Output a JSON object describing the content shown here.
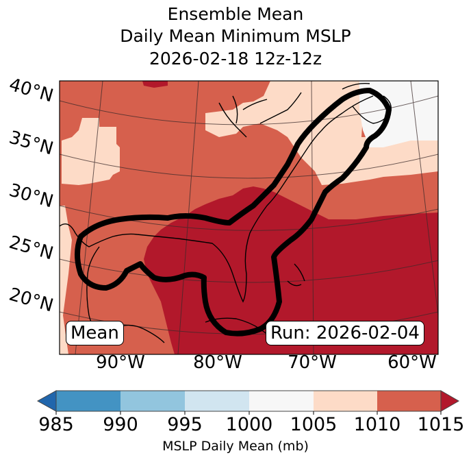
{
  "title": {
    "line1": "Ensemble Mean",
    "line2": "Daily Mean Minimum MSLP",
    "line3": "2026-02-18 12z-12z"
  },
  "map": {
    "lat_labels": [
      "40°N",
      "35°N",
      "30°N",
      "25°N",
      "20°N"
    ],
    "lon_labels": [
      "90°W",
      "80°W",
      "70°W",
      "60°W"
    ],
    "mean_box": "Mean",
    "run_box": "Run: 2026-02-04",
    "colors": {
      "c1005_1010": "#fddbc7",
      "c1010_1015": "#d6604d",
      "c_over_1015": "#b2182b",
      "c1000_1005": "#f7f7f7"
    }
  },
  "colorbar": {
    "label": "MSLP Daily Mean (mb)",
    "ticks": [
      "985",
      "990",
      "995",
      "1000",
      "1005",
      "1010",
      "1015"
    ],
    "colors": [
      "#4393c3",
      "#92c5de",
      "#d1e5f0",
      "#f7f7f7",
      "#fddbc7",
      "#d6604d"
    ],
    "under_color": "#2166ac",
    "over_color": "#b2182b"
  }
}
